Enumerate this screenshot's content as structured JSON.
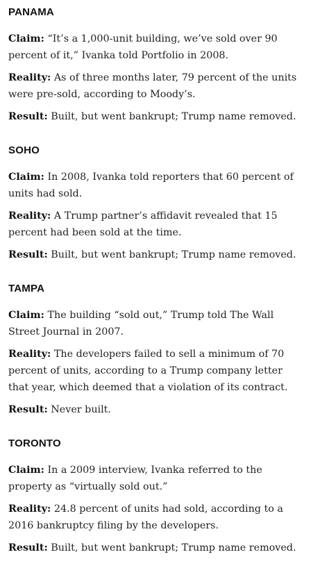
{
  "sections": [
    {
      "title": "PANAMA",
      "claim": {
        "label": "Claim:",
        "lines": [
          "“It’s a 1,000-unit building, we’ve sold over 90",
          "percent of it,” Ivanka told Portfolio in 2008."
        ]
      },
      "reality": {
        "label": "Reality:",
        "lines": [
          "As of three months later, 79 percent of the units",
          "were pre-sold, according to Moody’s."
        ]
      },
      "result": {
        "label": "Result:",
        "lines": [
          "Built, but went bankrupt; Trump name removed."
        ]
      }
    },
    {
      "title": "SOHO",
      "claim": {
        "label": "Claim:",
        "lines": [
          "In 2008, Ivanka told reporters that 60 percent of",
          "units had sold."
        ]
      },
      "reality": {
        "label": "Reality:",
        "lines": [
          "A Trump partner’s affidavit revealed that 15",
          "percent had been sold at the time."
        ]
      },
      "result": {
        "label": "Result:",
        "lines": [
          "Built, but went bankrupt; Trump name removed."
        ]
      }
    },
    {
      "title": "TAMPA",
      "claim": {
        "label": "Claim:",
        "lines": [
          "The building “sold out,” Trump told The Wall",
          "Street Journal in 2007."
        ]
      },
      "reality": {
        "label": "Reality:",
        "lines": [
          "The developers failed to sell a minimum of 70",
          "percent of units, according to a Trump company letter",
          "that year, which deemed that a violation of its contract."
        ]
      },
      "result": {
        "label": "Result:",
        "lines": [
          "Never built."
        ]
      }
    },
    {
      "title": "TORONTO",
      "claim": {
        "label": "Claim:",
        "lines": [
          "In a 2009 interview, Ivanka referred to the",
          "property as “virtually sold out.”"
        ]
      },
      "reality": {
        "label": "Reality:",
        "lines": [
          "24.8 percent of units had sold, according to a",
          "2016 bankruptcy filing by the developers."
        ]
      },
      "result": {
        "label": "Result:",
        "lines": [
          "Built, but went bankrupt; Trump name removed."
        ]
      }
    }
  ]
}
